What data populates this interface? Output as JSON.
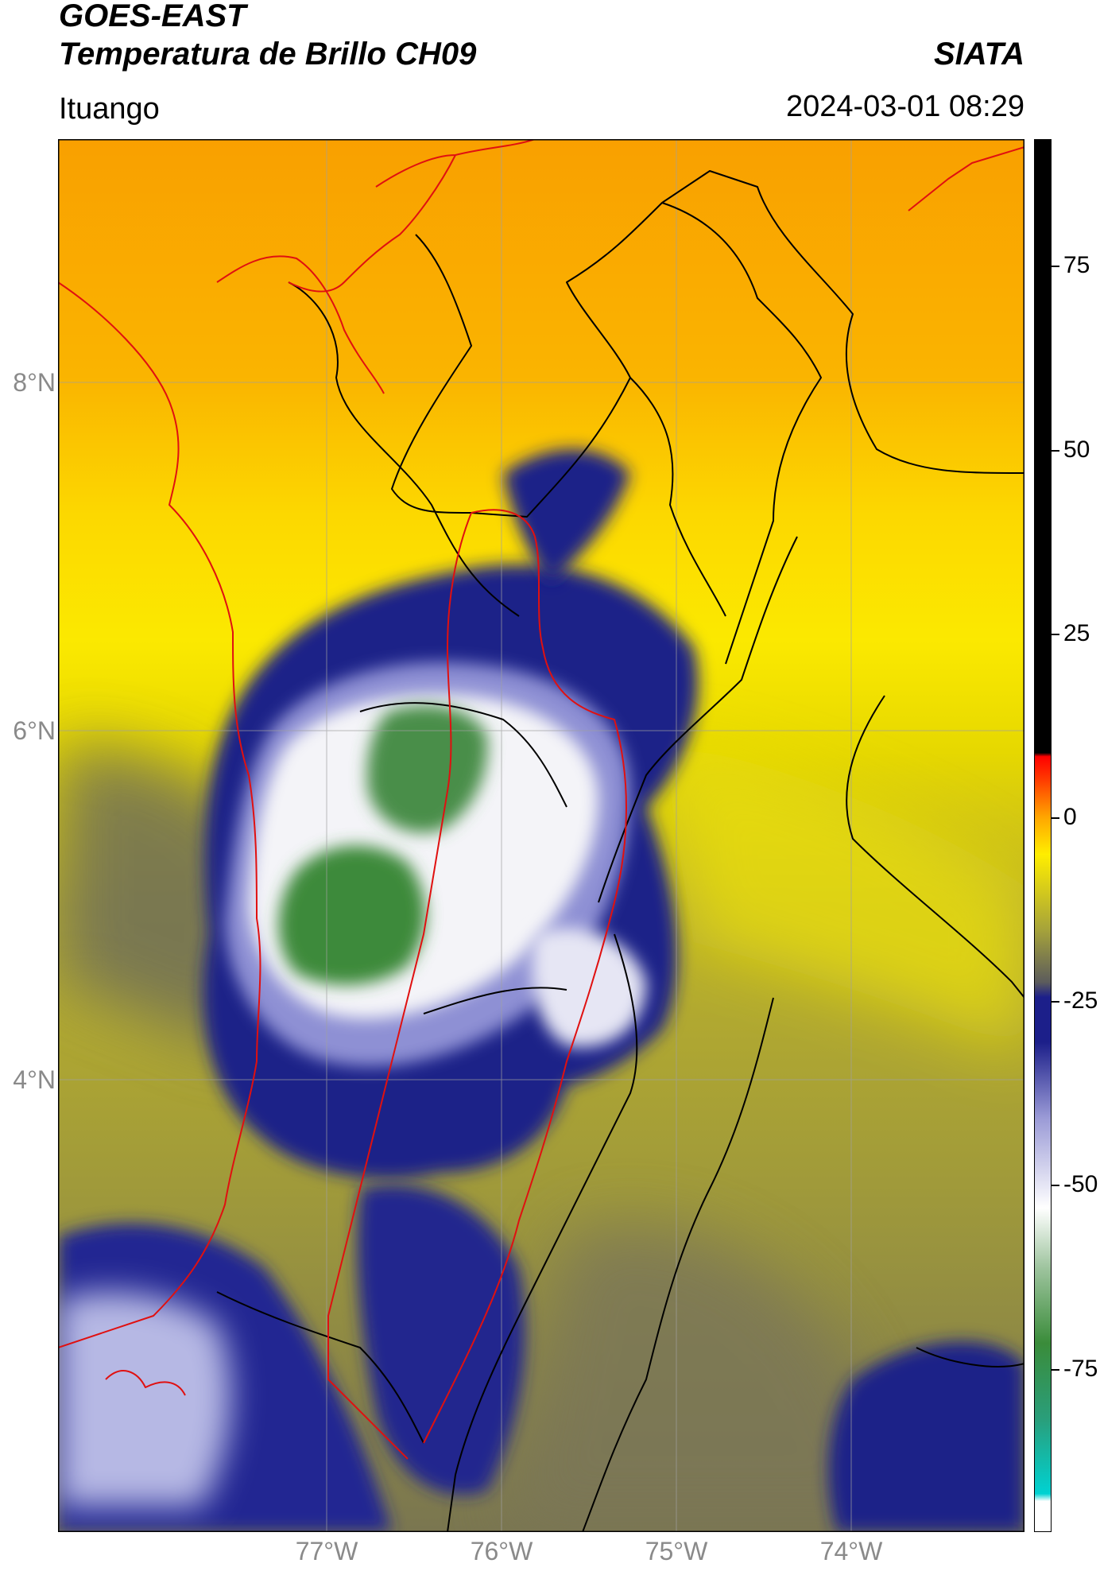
{
  "header": {
    "satellite": "GOES-EAST",
    "product": "Temperatura de Brillo CH09",
    "brand": "SIATA",
    "location": "Ituango",
    "datetime": "2024-03-01 08:29"
  },
  "map": {
    "lat_ticks": [
      "8°N",
      "6°N",
      "4°N"
    ],
    "lon_ticks": [
      "77°W",
      "76°W",
      "75°W",
      "74°W"
    ],
    "colors": {
      "land_warm": "#f9a300",
      "yellow": "#fbe700",
      "olive": "#a8a23a",
      "gray_olive": "#6e6e5a",
      "navy": "#1b1f86",
      "lavender": "#8e8fd0",
      "white": "#f4f4f8",
      "green": "#3c8a3a",
      "boundary_black": "#000000",
      "boundary_red": "#e01010"
    }
  },
  "colorbar": {
    "labels": [
      "75",
      "50",
      "25",
      "0",
      "-25",
      "-50",
      "-75"
    ],
    "range": [
      -95,
      90
    ],
    "stops": [
      {
        "value": -95,
        "color": "#ffffff"
      },
      {
        "value": -91,
        "color": "#ffffff"
      },
      {
        "value": -90,
        "color": "#00d2d2"
      },
      {
        "value": -80,
        "color": "#2a9e7a"
      },
      {
        "value": -70,
        "color": "#3a8c3a"
      },
      {
        "value": -60,
        "color": "#9ec49e"
      },
      {
        "value": -52,
        "color": "#ffffff"
      },
      {
        "value": -40,
        "color": "#9a9ad6"
      },
      {
        "value": -30,
        "color": "#1c1f8a"
      },
      {
        "value": -24,
        "color": "#1c1f8a"
      },
      {
        "value": -22,
        "color": "#5c5c5c"
      },
      {
        "value": -15,
        "color": "#a6a33a"
      },
      {
        "value": -5,
        "color": "#ffee00"
      },
      {
        "value": 0,
        "color": "#ffa500"
      },
      {
        "value": 5,
        "color": "#ff3a00"
      },
      {
        "value": 8,
        "color": "#ff0000"
      },
      {
        "value": 8.5,
        "color": "#000000"
      },
      {
        "value": 90,
        "color": "#000000"
      }
    ]
  }
}
